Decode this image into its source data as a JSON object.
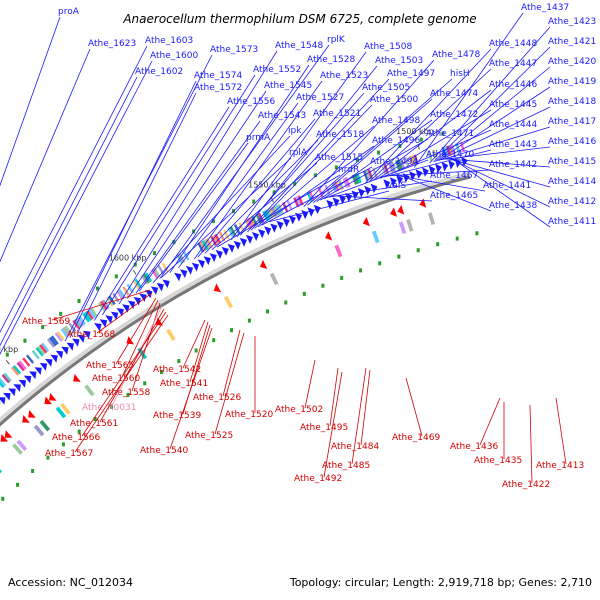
{
  "title": "Anaerocellum thermophilum DSM 6725, complete genome",
  "footer": {
    "accession": "Accession: NC_012034",
    "stats": "Topology: circular; Length: 2,919,718 bp; Genes: 2,710"
  },
  "colors": {
    "plus_label": "#1a1aff",
    "minus_label": "#d40000",
    "rna_label": "#f08ab0",
    "backbone": "#777777",
    "arrow_plus": "#1a1aff",
    "arrow_minus": "#ff0000"
  },
  "ticks": [
    "1700 kbp",
    "1650 kbp",
    "1600 kbp",
    "1550 kbp",
    "1500 kbp"
  ],
  "plus_labels": [
    {
      "text": "proA",
      "ang": -138.5
    },
    {
      "text": "Athe_1623",
      "ang": -137
    },
    {
      "text": "Athe_1603",
      "ang": -134.5
    },
    {
      "text": "Athe_1600",
      "ang": -133
    },
    {
      "text": "Athe_1602",
      "ang": -133.5
    },
    {
      "text": "Athe_1573",
      "ang": -126.3
    },
    {
      "text": "Athe_1574",
      "ang": -126
    },
    {
      "text": "Athe_1572",
      "ang": -125.5
    },
    {
      "text": "Athe_1556",
      "ang": -124.5
    },
    {
      "text": "Athe_1552",
      "ang": -124
    },
    {
      "text": "Athe_1548",
      "ang": -123
    },
    {
      "text": "Athe_1545",
      "ang": -122.5
    },
    {
      "text": "Athe_1543",
      "ang": -122
    },
    {
      "text": "prmA",
      "ang": -121.8
    },
    {
      "text": "ipk",
      "ang": -121
    },
    {
      "text": "rplA",
      "ang": -120.5
    },
    {
      "text": "rplK",
      "ang": -120.6
    },
    {
      "text": "Athe_1528",
      "ang": -120
    },
    {
      "text": "Athe_1527",
      "ang": -119.5
    },
    {
      "text": "Athe_1523",
      "ang": -118.6
    },
    {
      "text": "Athe_1521",
      "ang": -118.4
    },
    {
      "text": "Athe_1518",
      "ang": -118
    },
    {
      "text": "Athe_1515",
      "ang": -117.6
    },
    {
      "text": "nrdR",
      "ang": -117.3
    },
    {
      "text": "Athe_1508",
      "ang": -116.5
    },
    {
      "text": "Athe_1503",
      "ang": -116
    },
    {
      "text": "Athe_1505",
      "ang": -116.2
    },
    {
      "text": "Athe_1497",
      "ang": -115.6
    },
    {
      "text": "Athe_1500",
      "ang": -115.4
    },
    {
      "text": "Athe_1498",
      "ang": -115.2
    },
    {
      "text": "Athe_1496",
      "ang": -115
    },
    {
      "text": "Athe_1494",
      "ang": -114.8
    },
    {
      "text": "valS",
      "ang": -114.4
    },
    {
      "text": "Athe_1478",
      "ang": -112.5
    },
    {
      "text": "hisH",
      "ang": -112.3
    },
    {
      "text": "Athe_1474",
      "ang": -112
    },
    {
      "text": "Athe_1472",
      "ang": -111.8
    },
    {
      "text": "Athe_1471",
      "ang": -111.6
    },
    {
      "text": "Athe_1470",
      "ang": -111.4
    },
    {
      "text": "Athe_1467",
      "ang": -111.2
    },
    {
      "text": "Athe_1465",
      "ang": -111
    },
    {
      "text": "Athe_1448",
      "ang": -109.2
    },
    {
      "text": "Athe_1447",
      "ang": -109
    },
    {
      "text": "Athe_1446",
      "ang": -108.8
    },
    {
      "text": "Athe_1445",
      "ang": -108.6
    },
    {
      "text": "Athe_1444",
      "ang": -108.4
    },
    {
      "text": "Athe_1443",
      "ang": -108.2
    },
    {
      "text": "Athe_1442",
      "ang": -108
    },
    {
      "text": "Athe_1441",
      "ang": -107.8
    },
    {
      "text": "Athe_1438",
      "ang": -107.6
    },
    {
      "text": "Athe_1437",
      "ang": -106.6
    },
    {
      "text": "Athe_1423",
      "ang": -105.8
    },
    {
      "text": "Athe_1421",
      "ang": -105.6
    },
    {
      "text": "Athe_1420",
      "ang": -105.5
    },
    {
      "text": "Athe_1419",
      "ang": -105.4
    },
    {
      "text": "Athe_1418",
      "ang": -105.3
    },
    {
      "text": "Athe_1417",
      "ang": -105.2
    },
    {
      "text": "Athe_1416",
      "ang": -105.1
    },
    {
      "text": "Athe_1415",
      "ang": -105
    },
    {
      "text": "Athe_1414",
      "ang": -104.9
    },
    {
      "text": "Athe_1412",
      "ang": -104.8
    },
    {
      "text": "Athe_1411",
      "ang": -104.7
    }
  ],
  "minus_labels": [
    {
      "text": "Athe_1569",
      "color": "red"
    },
    {
      "text": "Athe_1568",
      "color": "red"
    },
    {
      "text": "Athe_1565",
      "color": "red"
    },
    {
      "text": "Athe_1560",
      "color": "red"
    },
    {
      "text": "Athe_1558",
      "color": "red"
    },
    {
      "text": "Athe_R0031",
      "color": "pink"
    },
    {
      "text": "Athe_1561",
      "color": "red"
    },
    {
      "text": "Athe_1566",
      "color": "red"
    },
    {
      "text": "Athe_1567",
      "color": "red"
    },
    {
      "text": "Athe_1542",
      "color": "red"
    },
    {
      "text": "Athe_1541",
      "color": "red"
    },
    {
      "text": "Athe_1539",
      "color": "red"
    },
    {
      "text": "Athe_1540",
      "color": "red"
    },
    {
      "text": "Athe_1526",
      "color": "red"
    },
    {
      "text": "Athe_1525",
      "color": "red"
    },
    {
      "text": "Athe_1520",
      "color": "red"
    },
    {
      "text": "Athe_1502",
      "color": "red"
    },
    {
      "text": "Athe_1495",
      "color": "red"
    },
    {
      "text": "Athe_1492",
      "color": "red"
    },
    {
      "text": "Athe_1485",
      "color": "red"
    },
    {
      "text": "Athe_1484",
      "color": "red"
    },
    {
      "text": "Athe_1469",
      "color": "red"
    },
    {
      "text": "Athe_1436",
      "color": "red"
    },
    {
      "text": "Athe_1435",
      "color": "red"
    },
    {
      "text": "Athe_1422",
      "color": "red"
    },
    {
      "text": "Athe_1413",
      "color": "red"
    }
  ]
}
